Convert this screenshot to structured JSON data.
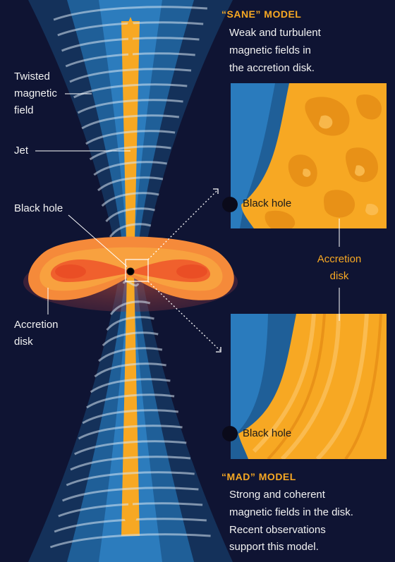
{
  "sane": {
    "title": "“SANE” MODEL",
    "desc_lines": [
      "Weak and turbulent",
      "magnetic fields in",
      "the accretion disk."
    ],
    "black_hole_label": "Black hole"
  },
  "mad": {
    "title": "“MAD” MODEL",
    "desc_lines": [
      "Strong and coherent",
      "magnetic fields in the disk.",
      "Recent observations",
      "support this model."
    ],
    "black_hole_label": "Black hole"
  },
  "left_labels": {
    "twisted_field": [
      "Twisted",
      "magnetic",
      "field"
    ],
    "jet": "Jet",
    "black_hole": "Black hole",
    "accretion_disk": [
      "Accretion",
      "disk"
    ]
  },
  "right_label": {
    "accretion_disk": [
      "Accretion",
      "disk"
    ]
  },
  "colors": {
    "background": "#0f1433",
    "jet": "#f7a823",
    "cone": "#1f6ea8",
    "accent_text": "#f7a823",
    "disk_outer": "#f58a3a",
    "disk_inner": "#f05a28"
  },
  "icons": {
    "jet_arrow_up": "arrow-up-icon",
    "jet_arrow_down": "arrow-down-icon"
  }
}
